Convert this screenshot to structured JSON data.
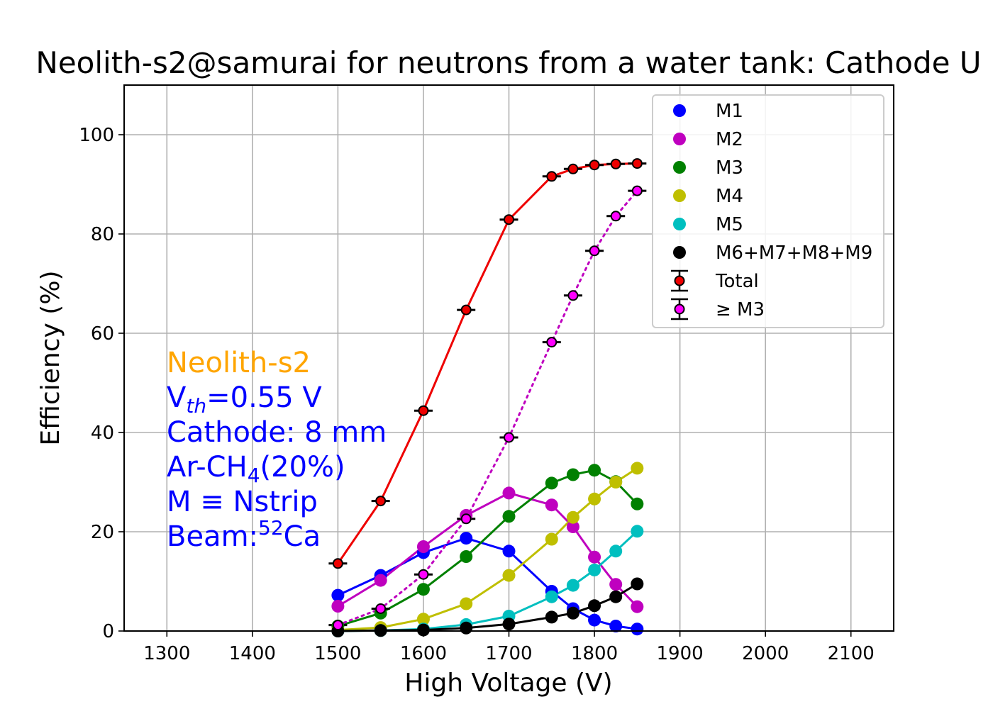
{
  "chart_data": {
    "type": "line",
    "title": "Neolith-s2@samurai for neutrons from a water tank: Cathode U",
    "xlabel": "High Voltage (V)",
    "ylabel": "Efficiency (%)",
    "xlim": [
      1250,
      2150
    ],
    "ylim": [
      0,
      110
    ],
    "xticks": [
      1300,
      1400,
      1500,
      1600,
      1700,
      1800,
      1900,
      2000,
      2100
    ],
    "yticks": [
      0,
      20,
      40,
      60,
      80,
      100
    ],
    "grid": true,
    "legend_position": "top-right",
    "series": [
      {
        "name": "M1",
        "color": "#0000ff",
        "x": [
          1500,
          1550,
          1600,
          1650,
          1700,
          1750,
          1775,
          1800,
          1825,
          1850
        ],
        "values": [
          7.2,
          11.2,
          15.8,
          18.7,
          16.1,
          8.0,
          4.5,
          2.2,
          1.0,
          0.4
        ]
      },
      {
        "name": "M2",
        "color": "#bf00bf",
        "x": [
          1500,
          1550,
          1600,
          1650,
          1700,
          1750,
          1775,
          1800,
          1825,
          1850
        ],
        "values": [
          5.0,
          10.2,
          17.0,
          23.3,
          27.8,
          25.4,
          21.0,
          14.9,
          9.4,
          4.9
        ]
      },
      {
        "name": "M3",
        "color": "#008000",
        "x": [
          1500,
          1550,
          1600,
          1650,
          1700,
          1750,
          1775,
          1800,
          1825,
          1850
        ],
        "values": [
          1.0,
          3.6,
          8.4,
          15.0,
          23.1,
          29.8,
          31.5,
          32.4,
          30.1,
          25.6
        ]
      },
      {
        "name": "M4",
        "color": "#bfbf00",
        "x": [
          1500,
          1550,
          1600,
          1650,
          1700,
          1750,
          1775,
          1800,
          1825,
          1850
        ],
        "values": [
          0.2,
          0.7,
          2.4,
          5.5,
          11.2,
          18.5,
          22.9,
          26.6,
          30.0,
          32.8
        ]
      },
      {
        "name": "M5",
        "color": "#00bfbf",
        "x": [
          1500,
          1550,
          1600,
          1650,
          1700,
          1750,
          1775,
          1800,
          1825,
          1850
        ],
        "values": [
          0.0,
          0.1,
          0.4,
          1.3,
          3.0,
          6.9,
          9.2,
          12.3,
          16.1,
          20.1
        ]
      },
      {
        "name": "M6+M7+M8+M9",
        "color": "#000000",
        "x": [
          1500,
          1550,
          1600,
          1650,
          1700,
          1750,
          1775,
          1800,
          1825,
          1850
        ],
        "values": [
          0.0,
          0.1,
          0.2,
          0.6,
          1.4,
          2.8,
          3.6,
          5.1,
          6.9,
          9.5
        ]
      },
      {
        "name": "Total",
        "color": "#ee0000",
        "fill": "#ee0000",
        "x": [
          1500,
          1550,
          1600,
          1650,
          1700,
          1750,
          1775,
          1800,
          1825,
          1850
        ],
        "values": [
          13.6,
          26.2,
          44.4,
          64.7,
          82.9,
          91.6,
          93.1,
          93.9,
          94.1,
          94.2
        ]
      },
      {
        "name": " ≥ M3",
        "color": "#bf00bf",
        "fill": "#ff00ff",
        "x": [
          1500,
          1550,
          1600,
          1650,
          1700,
          1750,
          1775,
          1800,
          1825,
          1850
        ],
        "values": [
          1.2,
          4.5,
          11.4,
          22.6,
          39.0,
          58.2,
          67.6,
          76.6,
          83.6,
          88.7
        ]
      }
    ],
    "annotation": {
      "color_primary": "#0000ff",
      "color_name": "#ffa500",
      "name": "Neolith-s2",
      "vth_prefix": "V",
      "vth_sub": "th",
      "vth_value": "=0.55 V",
      "cathode": "Cathode: 8 mm",
      "gas_prefix": "Ar-CH",
      "gas_sub": "4",
      "gas_suffix": "(20%)",
      "mdef": "M ≡ Nstrip",
      "beam_prefix": "Beam:",
      "beam_sup": "52",
      "beam_suffix": "Ca"
    }
  }
}
